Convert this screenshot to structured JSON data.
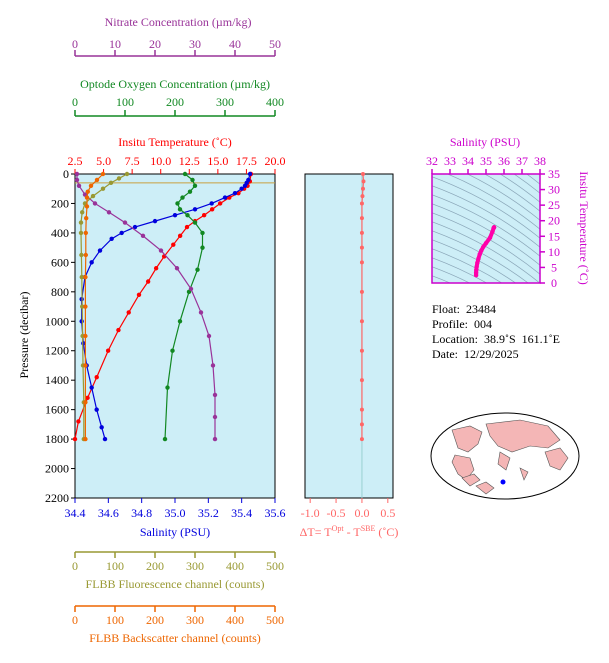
{
  "chart_data": [
    {
      "type": "line",
      "panel": "main-profile",
      "ylabel": "Pressure (decibar)",
      "ylim": [
        2200,
        0
      ],
      "yticks": [
        0,
        200,
        400,
        600,
        800,
        1000,
        1200,
        1400,
        1600,
        1800,
        2000,
        2200
      ],
      "axes": {
        "nitrate": {
          "label": "Nitrate Concentration (µm/kg)",
          "ticks": [
            0,
            10,
            20,
            30,
            40,
            50
          ],
          "color": "#993399"
        },
        "oxygen": {
          "label": "Optode Oxygen Concentration (µm/kg)",
          "ticks": [
            0,
            100,
            200,
            300,
            400
          ],
          "color": "#118822"
        },
        "temperature": {
          "label": "Insitu Temperature (˚C)",
          "ticks": [
            "2.5",
            "5.0",
            "7.5",
            "10.0",
            "12.5",
            "15.0",
            "17.5",
            "20.0"
          ],
          "color": "#ff0000"
        },
        "salinity": {
          "label": "Salinity (PSU)",
          "ticks": [
            "34.4",
            "34.6",
            "34.8",
            "35.0",
            "35.2",
            "35.4",
            "35.6"
          ],
          "color": "#0000dd"
        },
        "fluorescence": {
          "label": "FLBB Fluorescence channel (counts)",
          "ticks": [
            0,
            100,
            200,
            300,
            400,
            500
          ],
          "color": "#999933"
        },
        "backscatter": {
          "label": "FLBB Backscatter channel (counts)",
          "ticks": [
            0,
            100,
            200,
            300,
            400,
            500
          ],
          "color": "#ee6600"
        }
      },
      "series": [
        {
          "axis": "temperature",
          "color": "#ff0000",
          "x": [
            17.9,
            17.8,
            17.6,
            17.3,
            16.8,
            16.0,
            15.2,
            14.5,
            13.8,
            13.0,
            12.3,
            11.7,
            11.1,
            10.3,
            9.6,
            8.9,
            8.1,
            7.2,
            6.3,
            5.4,
            4.4,
            3.6,
            2.8,
            2.5
          ],
          "y": [
            0,
            50,
            80,
            100,
            130,
            160,
            200,
            240,
            280,
            320,
            360,
            420,
            480,
            560,
            640,
            730,
            820,
            940,
            1060,
            1200,
            1380,
            1520,
            1680,
            1800
          ]
        },
        {
          "axis": "salinity",
          "color": "#0000dd",
          "x": [
            35.45,
            35.44,
            35.43,
            35.42,
            35.4,
            35.36,
            35.3,
            35.22,
            35.12,
            35.0,
            34.88,
            34.76,
            34.68,
            34.62,
            34.55,
            34.5,
            34.46,
            34.44,
            34.44,
            34.45,
            34.47,
            34.5,
            34.53,
            34.56,
            34.58
          ],
          "y": [
            0,
            40,
            60,
            80,
            100,
            130,
            160,
            200,
            240,
            280,
            320,
            360,
            400,
            440,
            520,
            600,
            700,
            850,
            1000,
            1150,
            1300,
            1450,
            1600,
            1720,
            1800
          ]
        },
        {
          "axis": "oxygen",
          "color": "#118822",
          "x": [
            220,
            235,
            240,
            230,
            215,
            205,
            210,
            225,
            240,
            255,
            255,
            245,
            228,
            210,
            195,
            185,
            180
          ],
          "y": [
            0,
            40,
            80,
            120,
            160,
            200,
            240,
            280,
            330,
            400,
            500,
            650,
            800,
            1000,
            1200,
            1450,
            1800
          ]
        },
        {
          "axis": "nitrate",
          "color": "#993399",
          "x": [
            0.5,
            0.5,
            1.0,
            2.5,
            5.0,
            8.5,
            12.5,
            17.0,
            21.5,
            25.5,
            29.0,
            31.5,
            33.5,
            34.5,
            35.0,
            35.0,
            35.0
          ],
          "y": [
            0,
            40,
            80,
            140,
            200,
            260,
            330,
            420,
            520,
            640,
            780,
            940,
            1100,
            1300,
            1500,
            1650,
            1800
          ]
        },
        {
          "axis": "fluorescence",
          "color": "#999933",
          "x": [
            130,
            110,
            90,
            70,
            45,
            25,
            18,
            15,
            15,
            16,
            17,
            18,
            19,
            20,
            22,
            22
          ],
          "y": [
            0,
            30,
            60,
            100,
            150,
            200,
            260,
            330,
            400,
            550,
            700,
            900,
            1100,
            1300,
            1550,
            1800
          ]
        },
        {
          "axis": "backscatter",
          "color": "#ee6600",
          "x": [
            70,
            55,
            40,
            32,
            30,
            30,
            28,
            27,
            27,
            26,
            26,
            26,
            26,
            26,
            26
          ],
          "y": [
            0,
            40,
            80,
            120,
            160,
            220,
            300,
            400,
            550,
            700,
            900,
            1100,
            1300,
            1550,
            1800
          ]
        }
      ]
    },
    {
      "type": "line",
      "panel": "delta-t",
      "xlabel": "ΔT= T^Opt - T^SBE (˚C)",
      "xticks": [
        "-1.0",
        "-0.5",
        "0.0",
        "0.5"
      ],
      "xlim": [
        -1.1,
        0.6
      ],
      "ylim": [
        2200,
        0
      ],
      "series": [
        {
          "color": "#ff6666",
          "x": [
            0.02,
            0.03,
            0.02,
            0.01,
            0.0,
            0.0,
            0.0,
            0.0,
            0.0,
            0.0,
            0.0,
            0.0,
            0.0,
            0.0,
            0.0,
            0.0
          ],
          "y": [
            0,
            50,
            100,
            150,
            200,
            300,
            400,
            500,
            600,
            800,
            1000,
            1200,
            1400,
            1600,
            1700,
            1800
          ]
        }
      ]
    },
    {
      "type": "scatter",
      "panel": "ts-diagram",
      "xlabel": "Salinity (PSU)",
      "ylabel": "Insitu Temperature (˚C)",
      "xticks": [
        32,
        33,
        34,
        35,
        36,
        37,
        38
      ],
      "yticks": [
        0,
        5,
        10,
        15,
        20,
        25,
        30,
        35
      ],
      "xlim": [
        32,
        38
      ],
      "ylim": [
        0,
        35
      ],
      "series": [
        {
          "color": "#ff00aa",
          "x": [
            35.45,
            35.44,
            35.42,
            35.36,
            35.22,
            35.0,
            34.85,
            34.74,
            34.65,
            34.58,
            34.52,
            34.48,
            34.46,
            34.45,
            34.45
          ],
          "y": [
            17.9,
            17.8,
            17.6,
            16.5,
            14.5,
            12.8,
            11.6,
            10.4,
            9.2,
            7.8,
            6.5,
            5.2,
            4.2,
            3.3,
            2.5
          ]
        }
      ]
    }
  ],
  "info": {
    "float": "Float:  23484",
    "profile": "Profile:  004",
    "location": "Location:  38.9˚S  161.1˚E",
    "date": "Date:  12/29/2025"
  },
  "colors": {
    "panel_bg": "#cdeef7",
    "land": "#f4b6b6",
    "ocean": "#ffffff",
    "marker": "#0000ff"
  }
}
